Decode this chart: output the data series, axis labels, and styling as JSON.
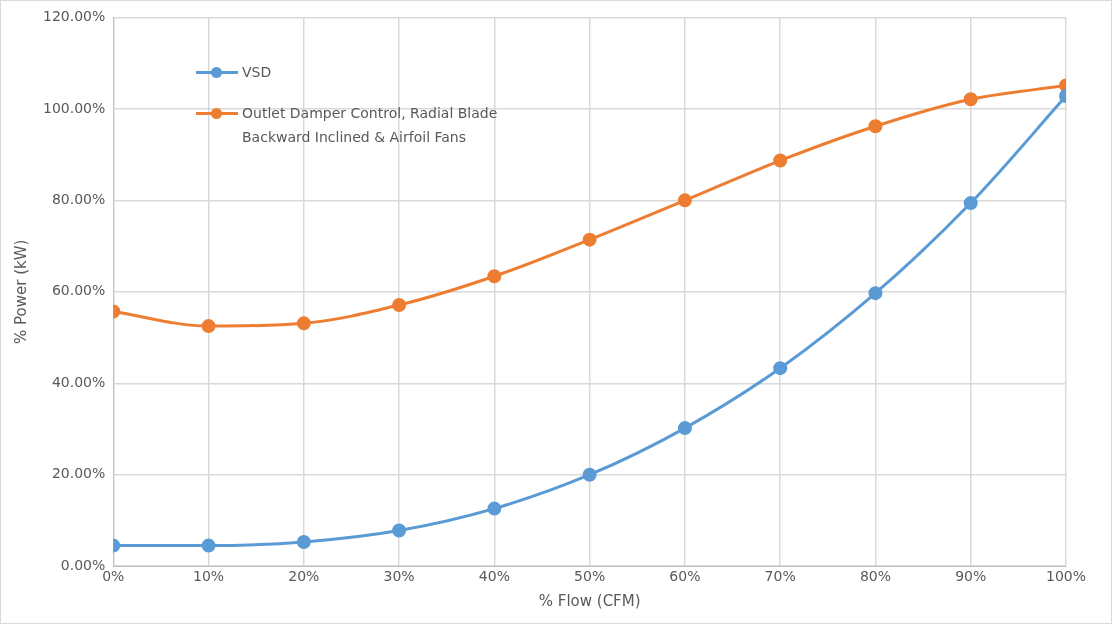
{
  "chart_data": {
    "type": "line",
    "xlabel": "% Flow (CFM)",
    "ylabel": "% Power (kW)",
    "x": [
      0,
      10,
      20,
      30,
      40,
      50,
      60,
      70,
      80,
      90,
      100
    ],
    "series": [
      {
        "name": "VSD",
        "color": "#5b9bd5",
        "values": [
          4.5,
          4.5,
          5.3,
          7.8,
          12.6,
          20.0,
          30.2,
          43.3,
          59.7,
          79.4,
          102.8
        ]
      },
      {
        "name": "Outlet Damper Control, Radial Blade Backward Inclined & Airfoil Fans",
        "color": "#ed7d31",
        "values": [
          55.7,
          52.5,
          53.1,
          57.1,
          63.4,
          71.4,
          80.0,
          88.7,
          96.2,
          102.1,
          105.1
        ]
      }
    ],
    "xlim": [
      0,
      100
    ],
    "xticks": [
      {
        "value": 0,
        "label": "0%"
      },
      {
        "value": 10,
        "label": "10%"
      },
      {
        "value": 20,
        "label": "20%"
      },
      {
        "value": 30,
        "label": "30%"
      },
      {
        "value": 40,
        "label": "40%"
      },
      {
        "value": 50,
        "label": "50%"
      },
      {
        "value": 60,
        "label": "60%"
      },
      {
        "value": 70,
        "label": "70%"
      },
      {
        "value": 80,
        "label": "80%"
      },
      {
        "value": 90,
        "label": "90%"
      },
      {
        "value": 100,
        "label": "100%"
      }
    ],
    "ylim": [
      0,
      120
    ],
    "yticks": [
      {
        "value": 0,
        "label": "0.00%"
      },
      {
        "value": 20,
        "label": "20.00%"
      },
      {
        "value": 40,
        "label": "40.00%"
      },
      {
        "value": 60,
        "label": "60.00%"
      },
      {
        "value": 80,
        "label": "80.00%"
      },
      {
        "value": 100,
        "label": "100.00%"
      },
      {
        "value": 120,
        "label": "120.00%"
      }
    ],
    "grid": true,
    "legend": "top left",
    "marker": "circle",
    "line_style": "solid"
  }
}
